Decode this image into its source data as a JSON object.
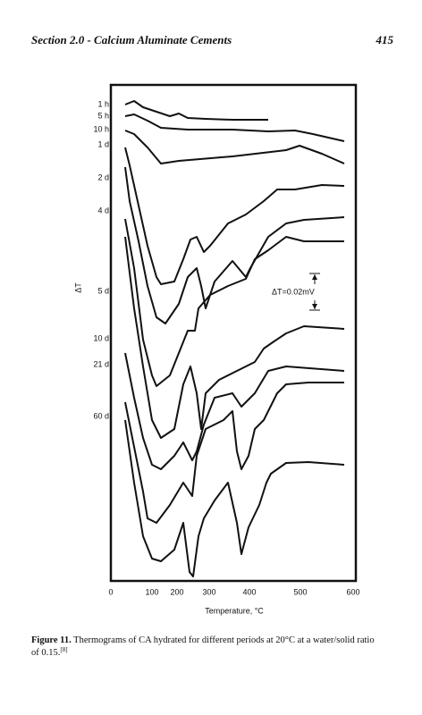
{
  "header": {
    "section": "Section 2.0 - Calcium Aluminate Cements",
    "page": "415"
  },
  "figure": {
    "curve_labels": [
      "1 h",
      "5 h",
      "10 h",
      "1 d",
      "2 d",
      "4 d",
      "5 d",
      "10 d",
      "21 d",
      "60 d"
    ],
    "x_ticks": [
      "0",
      "100",
      "200",
      "300",
      "400",
      "500",
      "600"
    ],
    "x_label": "Temperature, °C",
    "y_label": "ΔT",
    "annotation": "ΔT=0.02mV"
  },
  "caption": {
    "label": "Figure 11.",
    "text": "Thermograms of CA hydrated for different periods at 20°C at a water/solid ratio",
    "text2": "of 0.15.",
    "ref": "[8]"
  }
}
